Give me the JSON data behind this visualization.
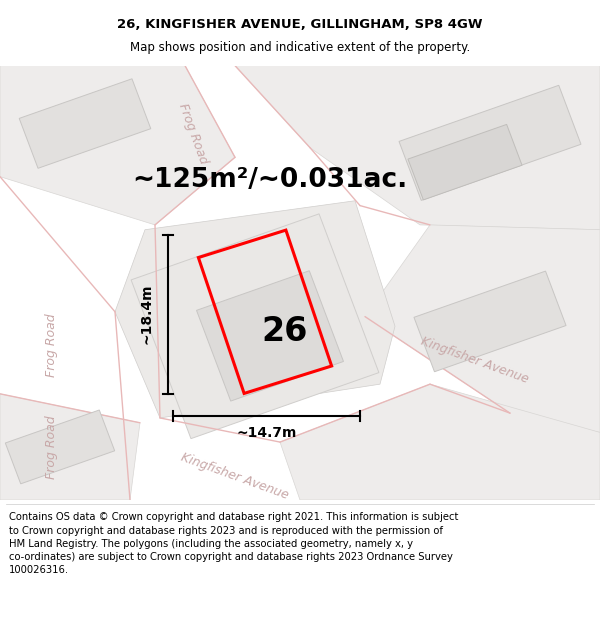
{
  "title": "26, KINGFISHER AVENUE, GILLINGHAM, SP8 4GW",
  "subtitle": "Map shows position and indicative extent of the property.",
  "area_text": "~125m²/~0.031ac.",
  "width_label": "~14.7m",
  "height_label": "~18.4m",
  "plot_number": "26",
  "footer": "Contains OS data © Crown copyright and database right 2021. This information is subject\nto Crown copyright and database rights 2023 and is reproduced with the permission of\nHM Land Registry. The polygons (including the associated geometry, namely x, y\nco-ordinates) are subject to Crown copyright and database rights 2023 Ordnance Survey\n100026316.",
  "bg_color": "#f2f0ee",
  "road_outline": "#e8b8b8",
  "plot_outline": "#ff0000",
  "title_fontsize": 9.5,
  "subtitle_fontsize": 8.5,
  "area_fontsize": 19,
  "footer_fontsize": 7.2,
  "street_label_color": "#c8a8a8"
}
